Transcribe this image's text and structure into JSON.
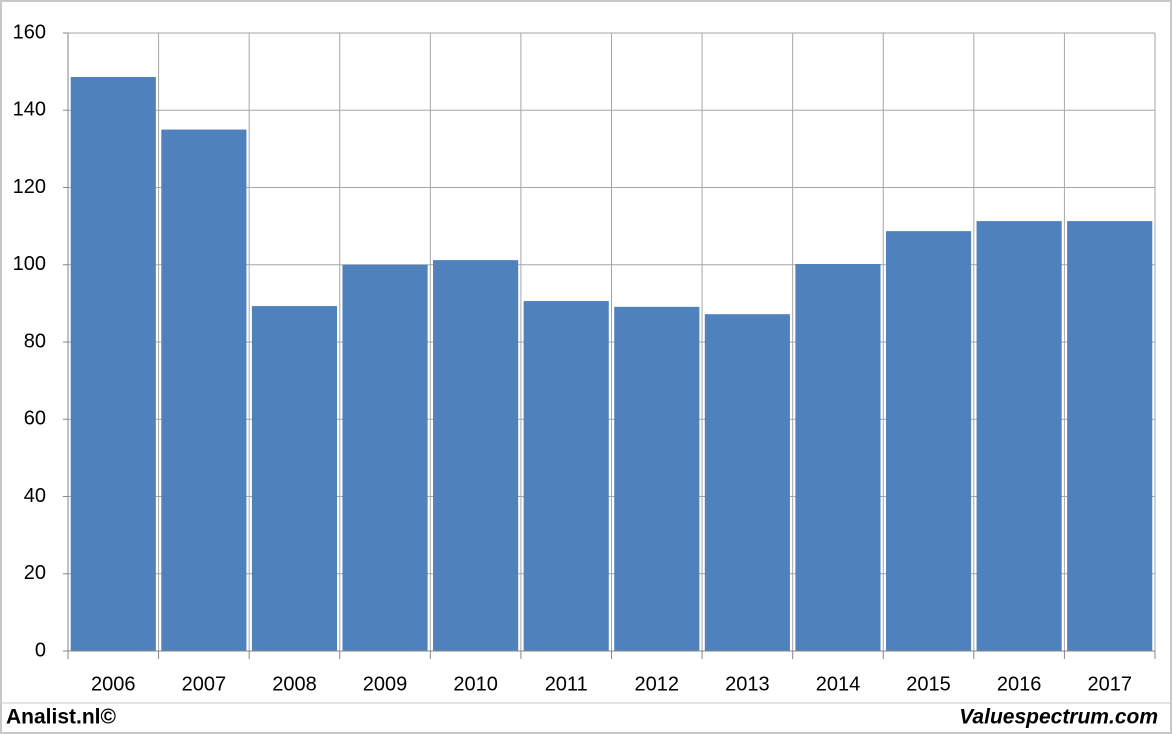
{
  "chart_data": {
    "type": "bar",
    "categories": [
      "2006",
      "2007",
      "2008",
      "2009",
      "2010",
      "2011",
      "2012",
      "2013",
      "2014",
      "2015",
      "2016",
      "2017"
    ],
    "values": [
      148.6,
      135,
      89.3,
      100,
      101.2,
      90.6,
      89.1,
      87.2,
      100.2,
      108.7,
      111.3,
      111.3
    ],
    "color": "#4f81bd",
    "ylim": [
      0,
      160
    ],
    "yticks": [
      0,
      20,
      40,
      60,
      80,
      100,
      120,
      140,
      160
    ],
    "grid": true,
    "credit": "Analist.nl©",
    "source": "Valuespectrum.com"
  }
}
